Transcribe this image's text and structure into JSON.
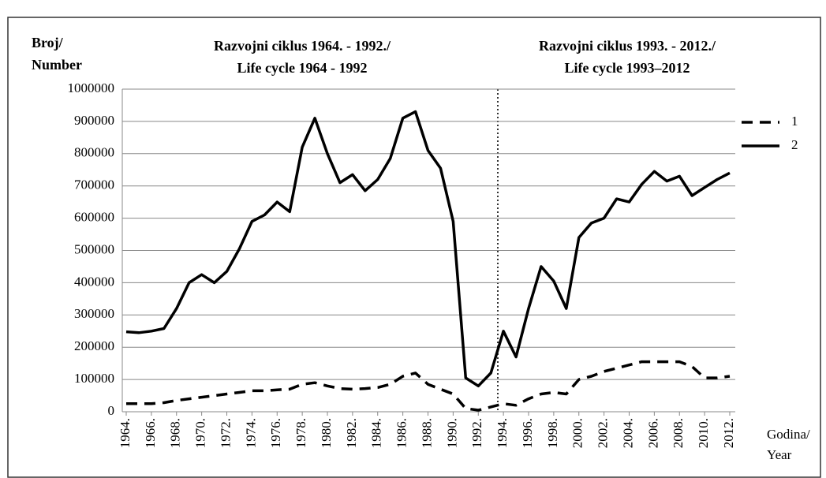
{
  "chart_data": {
    "type": "line",
    "period_titles": [
      [
        "Razvojni ciklus 1964. - 1992./",
        "Life cycle 1964 - 1992"
      ],
      [
        "Razvojni ciklus 1993. - 2012./",
        "Life cycle 1993–2012"
      ]
    ],
    "y_label": [
      "Broj/",
      "Number"
    ],
    "x_label": [
      "Godina/",
      "Year"
    ],
    "categories": [
      "1964.",
      null,
      "1966.",
      null,
      "1968.",
      null,
      "1970.",
      null,
      "1972.",
      null,
      "1974.",
      null,
      "1976.",
      null,
      "1978.",
      null,
      "1980.",
      null,
      "1982.",
      null,
      "1984.",
      null,
      "1986.",
      null,
      "1988.",
      null,
      "1990.",
      null,
      "1992.",
      null,
      "1994.",
      null,
      "1996.",
      null,
      "1998.",
      null,
      "2000.",
      null,
      "2002.",
      null,
      "2004.",
      null,
      "2006.",
      null,
      "2008.",
      null,
      "2010.",
      null,
      "2012."
    ],
    "series": [
      {
        "name": "1",
        "color": "#000000",
        "dash": true,
        "values": [
          25000,
          25000,
          25000,
          28000,
          35000,
          40000,
          45000,
          50000,
          55000,
          60000,
          65000,
          65000,
          68000,
          70000,
          85000,
          90000,
          80000,
          72000,
          70000,
          72000,
          75000,
          85000,
          110000,
          120000,
          85000,
          70000,
          55000,
          10000,
          5000,
          15000,
          25000,
          20000,
          40000,
          55000,
          60000,
          55000,
          100000,
          110000,
          125000,
          135000,
          145000,
          155000,
          155000,
          155000,
          155000,
          140000,
          105000,
          105000,
          110000
        ]
      },
      {
        "name": "2",
        "color": "#000000",
        "dash": false,
        "values": [
          248000,
          245000,
          250000,
          258000,
          320000,
          400000,
          425000,
          400000,
          435000,
          505000,
          590000,
          610000,
          650000,
          620000,
          820000,
          910000,
          800000,
          710000,
          735000,
          685000,
          720000,
          785000,
          910000,
          930000,
          810000,
          755000,
          590000,
          105000,
          80000,
          120000,
          250000,
          170000,
          320000,
          450000,
          405000,
          320000,
          540000,
          585000,
          600000,
          660000,
          650000,
          705000,
          745000,
          715000,
          730000,
          670000,
          695000,
          720000,
          740000
        ]
      }
    ],
    "ylim": [
      0,
      1000000
    ],
    "yticks": [
      0,
      100000,
      200000,
      300000,
      400000,
      500000,
      600000,
      700000,
      800000,
      900000,
      1000000
    ],
    "grid": true,
    "legend": "right"
  }
}
